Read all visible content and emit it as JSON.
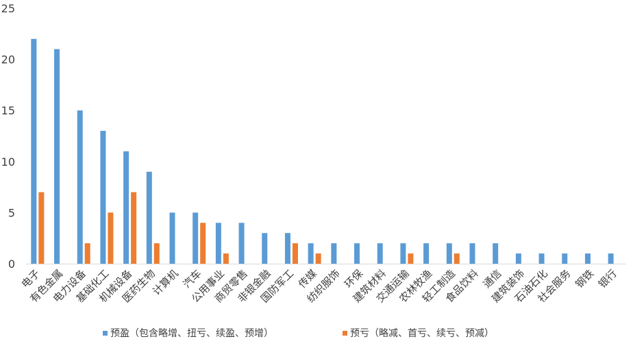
{
  "chart_data": {
    "type": "bar",
    "title": "",
    "xlabel": "",
    "ylabel": "",
    "ylim": [
      0,
      25
    ],
    "yticks": [
      0,
      5,
      10,
      15,
      20,
      25
    ],
    "grid": false,
    "legend_position": "bottom",
    "categories": [
      "电子",
      "有色金属",
      "电力设备",
      "基础化工",
      "机械设备",
      "医药生物",
      "计算机",
      "汽车",
      "公用事业",
      "商贸零售",
      "非银金融",
      "国防军工",
      "传媒",
      "纺织服饰",
      "环保",
      "建筑材料",
      "交通运输",
      "农林牧渔",
      "轻工制造",
      "食品饮料",
      "通信",
      "建筑装饰",
      "石油石化",
      "社会服务",
      "钢铁",
      "银行"
    ],
    "series": [
      {
        "name": "预盈（包含略增、扭亏、续盈、预增）",
        "color": "#5B9BD5",
        "values": [
          22,
          21,
          15,
          13,
          11,
          9,
          5,
          5,
          4,
          4,
          3,
          3,
          2,
          2,
          2,
          2,
          2,
          2,
          2,
          2,
          2,
          1,
          1,
          1,
          1,
          1
        ]
      },
      {
        "name": "预亏（略减、首亏、续亏、预减）",
        "color": "#ED7D31",
        "values": [
          7,
          0,
          2,
          5,
          7,
          2,
          0,
          4,
          1,
          0,
          0,
          2,
          1,
          0,
          0,
          0,
          1,
          0,
          1,
          0,
          0,
          0,
          0,
          0,
          0,
          0
        ]
      }
    ]
  }
}
